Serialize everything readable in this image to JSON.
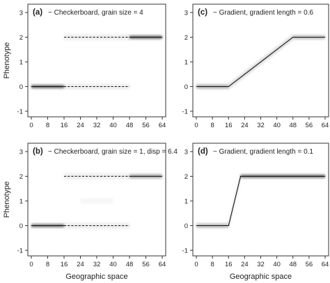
{
  "chart_data": [
    {
      "panel": "(a)",
      "type": "line",
      "title": "(a)",
      "subtitle": "Checkerboard, grain size = 4",
      "legend_symbol": "−",
      "xlabel": "",
      "ylabel": "Phenotype",
      "xlim": [
        0,
        64
      ],
      "ylim": [
        -1,
        3
      ],
      "x_ticks": [
        0,
        8,
        16,
        24,
        32,
        40,
        48,
        56,
        64
      ],
      "y_ticks": [
        -1,
        0,
        1,
        2,
        3
      ],
      "series": [
        {
          "style": "solid",
          "segments": [
            [
              [
                0,
                0
              ],
              [
                16,
                0
              ]
            ],
            [
              [
                48,
                2
              ],
              [
                64,
                2
              ]
            ]
          ]
        },
        {
          "style": "dashed",
          "segments": [
            [
              [
                16,
                0
              ],
              [
                48,
                0
              ]
            ],
            [
              [
                16,
                2
              ],
              [
                48,
                2
              ]
            ]
          ]
        }
      ],
      "density": [
        {
          "x": [
            0,
            16
          ],
          "y": 0,
          "intensity": 1.0
        },
        {
          "x": [
            16,
            48
          ],
          "y": 0,
          "intensity": 0.12
        },
        {
          "x": [
            16,
            48
          ],
          "y": 2,
          "intensity": 0.12
        },
        {
          "x": [
            48,
            64
          ],
          "y": 2,
          "intensity": 1.0
        }
      ]
    },
    {
      "panel": "(b)",
      "type": "line",
      "title": "(b)",
      "subtitle": "Checkerboard, grain size = 1, disp = 6.4",
      "legend_symbol": "−",
      "xlabel": "Geographic space",
      "ylabel": "Phenotype",
      "xlim": [
        0,
        64
      ],
      "ylim": [
        -1,
        3
      ],
      "x_ticks": [
        0,
        8,
        16,
        24,
        32,
        40,
        48,
        56,
        64
      ],
      "y_ticks": [
        -1,
        0,
        1,
        2,
        3
      ],
      "series": [
        {
          "style": "solid",
          "segments": [
            [
              [
                0,
                0
              ],
              [
                16,
                0
              ]
            ],
            [
              [
                48,
                2
              ],
              [
                64,
                2
              ]
            ]
          ]
        },
        {
          "style": "dashed",
          "segments": [
            [
              [
                16,
                0
              ],
              [
                48,
                0
              ]
            ],
            [
              [
                16,
                2
              ],
              [
                48,
                2
              ]
            ]
          ]
        }
      ],
      "density": [
        {
          "x": [
            0,
            16
          ],
          "y": 0,
          "intensity": 0.9
        },
        {
          "x": [
            16,
            48
          ],
          "y": 0,
          "intensity": 0.12
        },
        {
          "x": [
            16,
            48
          ],
          "y": 2,
          "intensity": 0.12
        },
        {
          "x": [
            24,
            40
          ],
          "y": 1,
          "intensity": 0.06
        },
        {
          "x": [
            48,
            64
          ],
          "y": 2,
          "intensity": 0.6
        }
      ]
    },
    {
      "panel": "(c)",
      "type": "line",
      "title": "(c)",
      "subtitle": "Gradient, gradient length = 0.6",
      "legend_symbol": "−",
      "xlabel": "",
      "ylabel": "",
      "xlim": [
        0,
        64
      ],
      "ylim": [
        -1,
        3
      ],
      "x_ticks": [
        0,
        8,
        16,
        24,
        32,
        40,
        48,
        56,
        64
      ],
      "y_ticks": [
        -1,
        0,
        1,
        2,
        3
      ],
      "series": [
        {
          "style": "solid",
          "segments": [
            [
              [
                0,
                0
              ],
              [
                16,
                0
              ],
              [
                48,
                2
              ],
              [
                64,
                2
              ]
            ]
          ]
        }
      ],
      "density": [
        {
          "x": [
            0,
            16
          ],
          "y": 0,
          "intensity": 0.55
        },
        {
          "x": [
            16,
            48
          ],
          "y_from": 0,
          "y_to": 2,
          "intensity": 0.35
        },
        {
          "x": [
            48,
            64
          ],
          "y": 2,
          "intensity": 0.45
        }
      ]
    },
    {
      "panel": "(d)",
      "type": "line",
      "title": "(d)",
      "subtitle": "Gradient, gradient length = 0.1",
      "legend_symbol": "−",
      "xlabel": "Geographic space",
      "ylabel": "",
      "xlim": [
        0,
        64
      ],
      "ylim": [
        -1,
        3
      ],
      "x_ticks": [
        0,
        8,
        16,
        24,
        32,
        40,
        48,
        56,
        64
      ],
      "y_ticks": [
        -1,
        0,
        1,
        2,
        3
      ],
      "series": [
        {
          "style": "solid",
          "segments": [
            [
              [
                0,
                0
              ],
              [
                16,
                0
              ],
              [
                22,
                2
              ],
              [
                64,
                2
              ]
            ]
          ]
        }
      ],
      "density": [
        {
          "x": [
            0,
            16
          ],
          "y": 0,
          "intensity": 0.5
        },
        {
          "x": [
            16,
            22
          ],
          "y_from": 0,
          "y_to": 2,
          "intensity": 0.4
        },
        {
          "x": [
            22,
            64
          ],
          "y": 2,
          "intensity": 0.95
        }
      ]
    }
  ]
}
